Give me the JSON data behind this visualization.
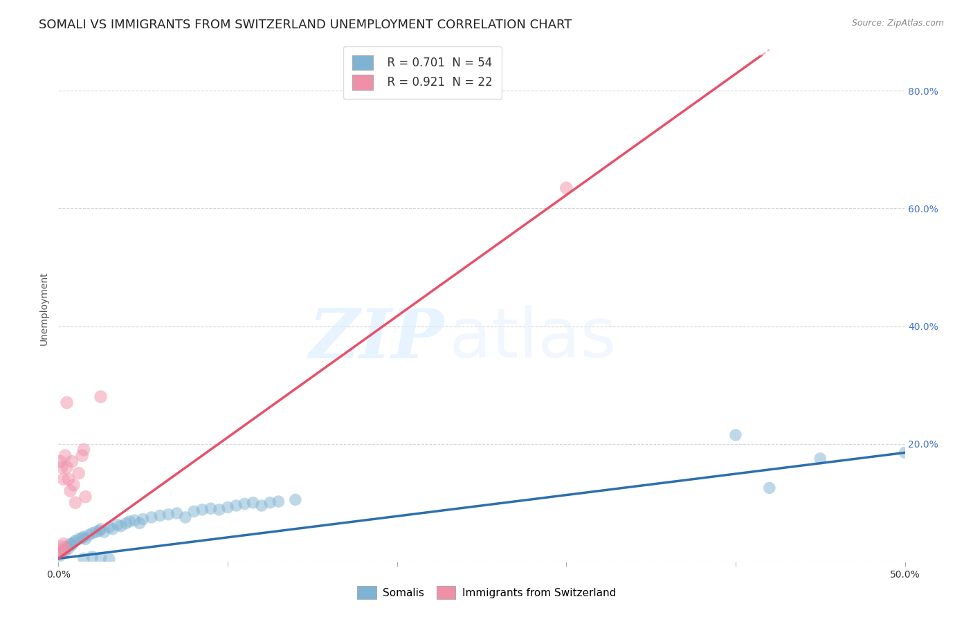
{
  "title": "SOMALI VS IMMIGRANTS FROM SWITZERLAND UNEMPLOYMENT CORRELATION CHART",
  "source_text": "Source: ZipAtlas.com",
  "ylabel": "Unemployment",
  "watermark_zip": "ZIP",
  "watermark_atlas": "atlas",
  "xlim": [
    0.0,
    0.5
  ],
  "ylim": [
    0.0,
    0.86
  ],
  "xticks": [
    0.0,
    0.1,
    0.2,
    0.3,
    0.4,
    0.5
  ],
  "yticks": [
    0.0,
    0.2,
    0.4,
    0.6,
    0.8
  ],
  "right_ytick_labels": [
    "",
    "20.0%",
    "40.0%",
    "60.0%",
    "80.0%"
  ],
  "somali_color": "#7fb3d3",
  "swiss_color": "#f090a8",
  "somali_line_color": "#2c6fad",
  "swiss_line_color": "#e8506a",
  "somali_scatter": [
    [
      0.001,
      0.01
    ],
    [
      0.002,
      0.015
    ],
    [
      0.003,
      0.02
    ],
    [
      0.004,
      0.018
    ],
    [
      0.005,
      0.025
    ],
    [
      0.006,
      0.022
    ],
    [
      0.007,
      0.03
    ],
    [
      0.008,
      0.028
    ],
    [
      0.009,
      0.032
    ],
    [
      0.01,
      0.035
    ],
    [
      0.012,
      0.038
    ],
    [
      0.014,
      0.04
    ],
    [
      0.015,
      0.042
    ],
    [
      0.016,
      0.038
    ],
    [
      0.018,
      0.045
    ],
    [
      0.02,
      0.048
    ],
    [
      0.022,
      0.05
    ],
    [
      0.024,
      0.052
    ],
    [
      0.025,
      0.055
    ],
    [
      0.027,
      0.05
    ],
    [
      0.03,
      0.058
    ],
    [
      0.032,
      0.055
    ],
    [
      0.035,
      0.062
    ],
    [
      0.037,
      0.06
    ],
    [
      0.04,
      0.065
    ],
    [
      0.042,
      0.068
    ],
    [
      0.045,
      0.07
    ],
    [
      0.048,
      0.065
    ],
    [
      0.05,
      0.072
    ],
    [
      0.055,
      0.075
    ],
    [
      0.06,
      0.078
    ],
    [
      0.065,
      0.08
    ],
    [
      0.07,
      0.082
    ],
    [
      0.075,
      0.075
    ],
    [
      0.08,
      0.085
    ],
    [
      0.085,
      0.088
    ],
    [
      0.09,
      0.09
    ],
    [
      0.095,
      0.088
    ],
    [
      0.1,
      0.092
    ],
    [
      0.105,
      0.095
    ],
    [
      0.11,
      0.098
    ],
    [
      0.115,
      0.1
    ],
    [
      0.12,
      0.095
    ],
    [
      0.125,
      0.1
    ],
    [
      0.13,
      0.102
    ],
    [
      0.14,
      0.105
    ],
    [
      0.015,
      0.005
    ],
    [
      0.02,
      0.008
    ],
    [
      0.025,
      0.006
    ],
    [
      0.03,
      0.004
    ],
    [
      0.4,
      0.215
    ],
    [
      0.42,
      0.125
    ],
    [
      0.45,
      0.175
    ],
    [
      0.5,
      0.185
    ]
  ],
  "swiss_scatter": [
    [
      0.001,
      0.015
    ],
    [
      0.002,
      0.025
    ],
    [
      0.003,
      0.03
    ],
    [
      0.004,
      0.02
    ],
    [
      0.005,
      0.16
    ],
    [
      0.006,
      0.14
    ],
    [
      0.007,
      0.12
    ],
    [
      0.008,
      0.17
    ],
    [
      0.009,
      0.13
    ],
    [
      0.01,
      0.1
    ],
    [
      0.012,
      0.15
    ],
    [
      0.014,
      0.18
    ],
    [
      0.015,
      0.19
    ],
    [
      0.016,
      0.11
    ],
    [
      0.002,
      0.16
    ],
    [
      0.003,
      0.14
    ],
    [
      0.004,
      0.18
    ],
    [
      0.001,
      0.17
    ],
    [
      0.005,
      0.27
    ],
    [
      0.025,
      0.28
    ],
    [
      0.3,
      0.635
    ],
    [
      0.001,
      0.02
    ]
  ],
  "blue_line": [
    0.0,
    0.005,
    0.5,
    0.185
  ],
  "pink_line": [
    0.0,
    0.005,
    0.42,
    0.87
  ],
  "background_color": "#ffffff",
  "grid_color": "#cccccc",
  "title_fontsize": 13,
  "axis_label_fontsize": 10,
  "tick_fontsize": 10,
  "legend_fontsize": 12,
  "source_fontsize": 9
}
